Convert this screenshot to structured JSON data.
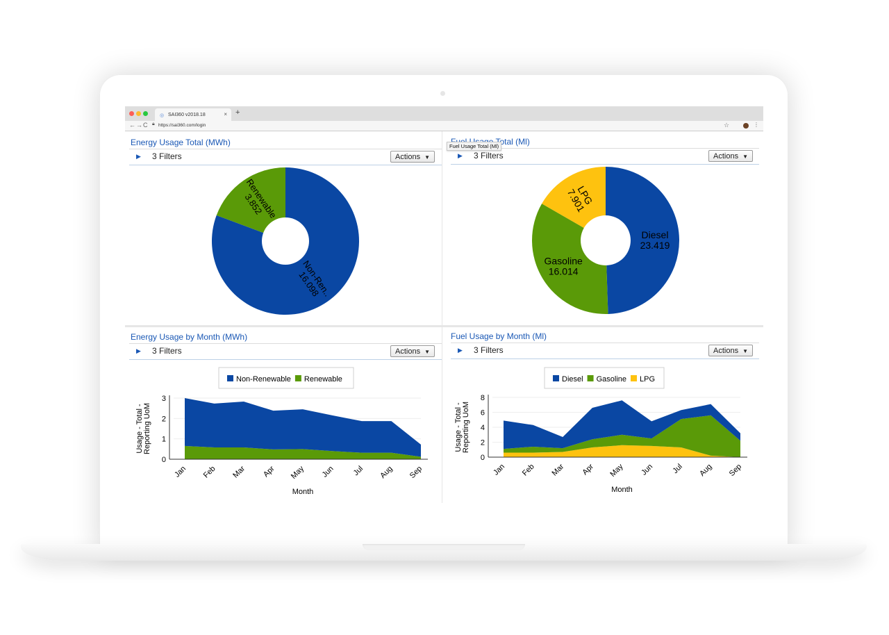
{
  "browser": {
    "tab_title": "SAI360 v2018.18",
    "tab_close": "×",
    "new_tab": "+",
    "url": "https://sai360.com/login",
    "tooltip": "Fuel Usage Total (Ml)"
  },
  "colors": {
    "blue": "#0a47a3",
    "green": "#5a9a08",
    "yellow": "#fec20f"
  },
  "panels": {
    "energy_total": {
      "title": "Energy Usage Total (MWh)",
      "filters": "3 Filters",
      "actions": "Actions"
    },
    "fuel_total": {
      "title": "Fuel Usage Total (Ml)",
      "filters": "3 Filters",
      "actions": "Actions"
    },
    "energy_month": {
      "title": "Energy Usage by Month (MWh)",
      "filters": "3 Filters",
      "actions": "Actions"
    },
    "fuel_month": {
      "title": "Fuel Usage by Month (Ml)",
      "filters": "3 Filters",
      "actions": "Actions"
    }
  },
  "chart_data": [
    {
      "type": "pie",
      "title": "Energy Usage Total (MWh)",
      "slices": [
        {
          "label": "Non-Ren..",
          "value": 16.098,
          "value_label": "16.098",
          "color": "#0a47a3"
        },
        {
          "label": "Renewable",
          "value": 3.852,
          "value_label": "3.852",
          "color": "#5a9a08"
        }
      ]
    },
    {
      "type": "pie",
      "title": "Fuel Usage Total (Ml)",
      "slices": [
        {
          "label": "Diesel",
          "value": 23.419,
          "value_label": "23.419",
          "color": "#0a47a3"
        },
        {
          "label": "Gasoline",
          "value": 16.014,
          "value_label": "16.014",
          "color": "#5a9a08"
        },
        {
          "label": "LPG",
          "value": 7.901,
          "value_label": "7.901",
          "color": "#fec20f"
        }
      ]
    },
    {
      "type": "area",
      "title": "Energy Usage by Month (MWh)",
      "xlabel": "Month",
      "ylabel": "Usage - Total - Reporting UoM",
      "categories": [
        "Jan",
        "Feb",
        "Mar",
        "Apr",
        "May",
        "Jun",
        "Jul",
        "Aug",
        "Sep"
      ],
      "ylim": [
        0,
        3
      ],
      "yticks": [
        "0",
        "1",
        "2",
        "3"
      ],
      "stacked": true,
      "legend": "top",
      "series": [
        {
          "name": "Non-Renewable",
          "color": "#0a47a3",
          "values": [
            2.35,
            2.15,
            2.25,
            1.9,
            1.95,
            1.75,
            1.55,
            1.55,
            0.6
          ]
        },
        {
          "name": "Renewable",
          "color": "#5a9a08",
          "values": [
            0.65,
            0.58,
            0.58,
            0.48,
            0.5,
            0.4,
            0.32,
            0.32,
            0.12
          ]
        }
      ]
    },
    {
      "type": "area",
      "title": "Fuel Usage by Month (Ml)",
      "xlabel": "Month",
      "ylabel": "Usage - Total - Reporting UoM",
      "categories": [
        "Jan",
        "Feb",
        "Mar",
        "Apr",
        "May",
        "Jun",
        "Jul",
        "Aug",
        "Sep"
      ],
      "ylim": [
        0,
        8
      ],
      "yticks": [
        "0",
        "2",
        "4",
        "6",
        "8"
      ],
      "stacked": true,
      "legend": "top",
      "series": [
        {
          "name": "Diesel",
          "color": "#0a47a3",
          "values": [
            3.8,
            2.9,
            1.5,
            4.2,
            4.6,
            2.3,
            1.2,
            1.5,
            1.0
          ]
        },
        {
          "name": "Gasoline",
          "color": "#5a9a08",
          "values": [
            0.5,
            0.8,
            0.5,
            1.1,
            1.4,
            1.0,
            3.8,
            5.4,
            2.2
          ]
        },
        {
          "name": "LPG",
          "color": "#fec20f",
          "values": [
            0.6,
            0.6,
            0.7,
            1.3,
            1.6,
            1.5,
            1.3,
            0.2,
            0.0
          ]
        }
      ]
    }
  ]
}
